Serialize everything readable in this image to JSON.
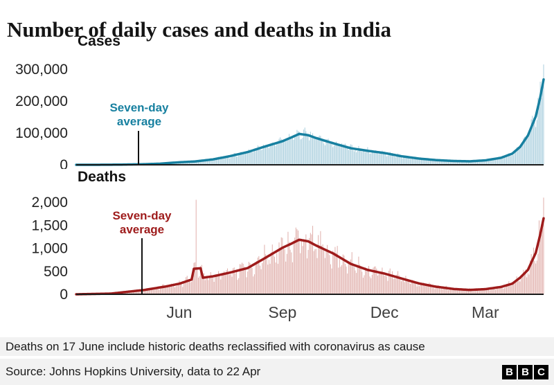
{
  "title": "Number of daily cases and deaths in India",
  "footnote": "Deaths on 17 June include historic deaths reclassified with coronavirus as cause",
  "source": "Source: Johns Hopkins University, data to 22 Apr",
  "logo": {
    "l1": "B",
    "l2": "B",
    "l3": "C"
  },
  "chart_data": [
    {
      "type": "bar",
      "name": "cases",
      "title": "Cases",
      "annotation": "Seven-day average",
      "line_color": "#1780A0",
      "bar_color": "#A8CEDD",
      "ylim": [
        0,
        326000
      ],
      "x_range_days": 417,
      "y_ticks": [
        {
          "value": 0,
          "label": "0"
        },
        {
          "value": 100000,
          "label": "100,000"
        },
        {
          "value": 200000,
          "label": "200,000"
        },
        {
          "value": 300000,
          "label": "300,000"
        }
      ],
      "x_ticks": [],
      "avg_points": [
        [
          0,
          0
        ],
        [
          20,
          100
        ],
        [
          40,
          600
        ],
        [
          60,
          1800
        ],
        [
          75,
          3500
        ],
        [
          92,
          8000
        ],
        [
          106,
          10500
        ],
        [
          122,
          17000
        ],
        [
          137,
          27000
        ],
        [
          153,
          40000
        ],
        [
          168,
          57000
        ],
        [
          184,
          74000
        ],
        [
          192,
          86000
        ],
        [
          199,
          97000
        ],
        [
          207,
          93000
        ],
        [
          214,
          84000
        ],
        [
          229,
          68000
        ],
        [
          245,
          52000
        ],
        [
          260,
          44000
        ],
        [
          275,
          37000
        ],
        [
          290,
          27000
        ],
        [
          306,
          19500
        ],
        [
          321,
          14800
        ],
        [
          337,
          12000
        ],
        [
          351,
          11000
        ],
        [
          365,
          14000
        ],
        [
          379,
          22000
        ],
        [
          389,
          35000
        ],
        [
          396,
          56000
        ],
        [
          403,
          92000
        ],
        [
          410,
          152000
        ],
        [
          414,
          212000
        ],
        [
          417,
          268000
        ]
      ],
      "spikes": [
        [
          417,
          315000
        ]
      ],
      "bar_noise": 0.22,
      "seed": 7
    },
    {
      "type": "bar",
      "name": "deaths",
      "title": "Deaths",
      "annotation": "Seven-day average",
      "line_color": "#9E1B1B",
      "bar_color": "#E0AFAB",
      "ylim": [
        0,
        2160
      ],
      "x_range_days": 417,
      "y_ticks": [
        {
          "value": 0,
          "label": "0"
        },
        {
          "value": 500,
          "label": "500"
        },
        {
          "value": 1000,
          "label": "1,000"
        },
        {
          "value": 1500,
          "label": "1,500"
        },
        {
          "value": 2000,
          "label": "2,000"
        }
      ],
      "x_ticks": [
        {
          "day": 92,
          "label": "Jun"
        },
        {
          "day": 184,
          "label": "Sep"
        },
        {
          "day": 275,
          "label": "Dec"
        },
        {
          "day": 365,
          "label": "Mar"
        }
      ],
      "avg_points": [
        [
          0,
          0
        ],
        [
          31,
          15
        ],
        [
          61,
          95
        ],
        [
          80,
          170
        ],
        [
          92,
          230
        ],
        [
          103,
          320
        ],
        [
          105,
          555
        ],
        [
          111,
          565
        ],
        [
          113,
          360
        ],
        [
          122,
          390
        ],
        [
          137,
          470
        ],
        [
          153,
          570
        ],
        [
          168,
          780
        ],
        [
          184,
          1010
        ],
        [
          192,
          1100
        ],
        [
          199,
          1185
        ],
        [
          207,
          1150
        ],
        [
          214,
          1060
        ],
        [
          229,
          890
        ],
        [
          245,
          660
        ],
        [
          260,
          530
        ],
        [
          275,
          450
        ],
        [
          290,
          345
        ],
        [
          306,
          235
        ],
        [
          321,
          165
        ],
        [
          337,
          115
        ],
        [
          351,
          95
        ],
        [
          365,
          112
        ],
        [
          379,
          160
        ],
        [
          389,
          230
        ],
        [
          396,
          360
        ],
        [
          403,
          530
        ],
        [
          410,
          900
        ],
        [
          414,
          1300
        ],
        [
          417,
          1650
        ]
      ],
      "spikes": [
        [
          107,
          2053
        ],
        [
          417,
          2100
        ]
      ],
      "bar_noise": 0.35,
      "seed": 11
    }
  ]
}
